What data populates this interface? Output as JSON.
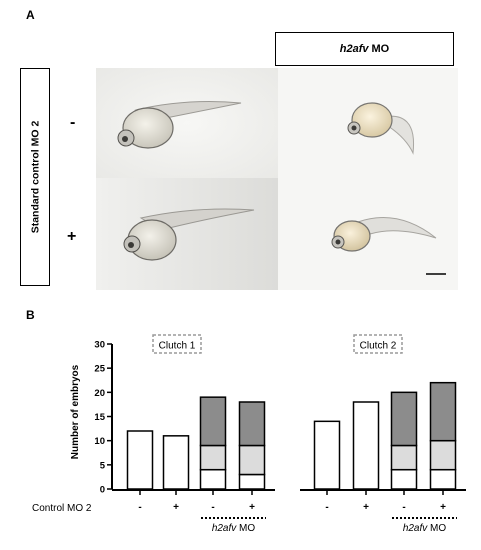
{
  "panel_a": {
    "letter": "A",
    "side_label": "Standard control MO 2",
    "column_header_italic": "h2afv",
    "column_header_rest": "MO",
    "row_minus": "-",
    "row_plus": "+"
  },
  "panel_b": {
    "letter": "B",
    "xaxis_label": "Control MO  2"
  },
  "chart_data": {
    "type": "bar",
    "stacked": true,
    "ylabel": "Number of embryos",
    "ylim": [
      0,
      30
    ],
    "yticks": [
      "0",
      "5",
      "10",
      "15",
      "20",
      "25",
      "30"
    ],
    "groups": [
      {
        "label": "Clutch 1",
        "categories": [
          "-",
          "+",
          "-",
          "+"
        ],
        "bottom": [
          12,
          11,
          4,
          3
        ],
        "middle": [
          0,
          0,
          5,
          6
        ],
        "top": [
          0,
          0,
          10,
          9
        ],
        "totals": [
          12,
          11,
          19,
          18
        ]
      },
      {
        "label": "Clutch 2",
        "categories": [
          "-",
          "+",
          "-",
          "+"
        ],
        "bottom": [
          14,
          18,
          4,
          4
        ],
        "middle": [
          0,
          0,
          5,
          6
        ],
        "top": [
          0,
          0,
          11,
          12
        ],
        "totals": [
          14,
          18,
          20,
          22
        ]
      }
    ],
    "bracket_label_italic": "h2afv",
    "bracket_label_rest": " MO",
    "colors": {
      "bottom": "#ffffff",
      "middle": "#dcdcdc",
      "top": "#8c8c8c",
      "stroke": "#000000"
    },
    "grid": false
  }
}
